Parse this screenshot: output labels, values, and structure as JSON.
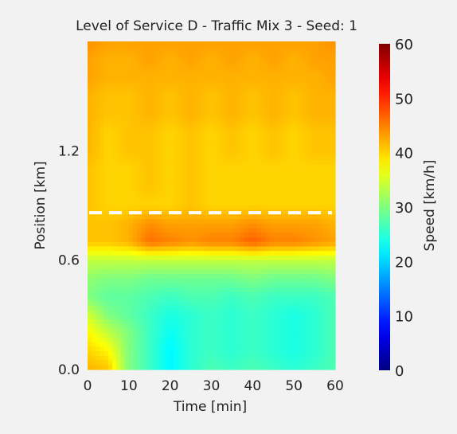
{
  "chart_data": {
    "type": "heatmap",
    "title": "Level of Service D - Traffic Mix 3 - Seed: 1",
    "xlabel": "Time [min]",
    "ylabel": "Position [km]",
    "xlim": [
      0,
      60
    ],
    "ylim": [
      0,
      1.8
    ],
    "xticks": [
      0,
      10,
      20,
      30,
      40,
      50,
      60
    ],
    "yticks": [
      0.0,
      0.6,
      1.2
    ],
    "ytick_labels": [
      "0.0",
      "0.6",
      "1.2"
    ],
    "reference_line": {
      "style": "dashed",
      "color": "#ffffff",
      "position_km": 0.86
    },
    "colorbar": {
      "label": "Speed [km/h]",
      "range": [
        0,
        60
      ],
      "ticks": [
        0,
        10,
        20,
        30,
        40,
        50,
        60
      ],
      "colormap": "jet"
    },
    "time_min": [
      0,
      5,
      10,
      15,
      20,
      25,
      30,
      35,
      40,
      45,
      50,
      55,
      60
    ],
    "position_km": [
      0.0,
      0.1,
      0.2,
      0.3,
      0.4,
      0.5,
      0.6,
      0.7,
      0.8,
      0.9,
      1.0,
      1.1,
      1.2,
      1.3,
      1.4,
      1.5,
      1.6,
      1.7,
      1.8
    ],
    "speed_kmh": [
      [
        42,
        41,
        30,
        26,
        22,
        25,
        27,
        26,
        27,
        26,
        25,
        26,
        27
      ],
      [
        40,
        38,
        30,
        26,
        22,
        25,
        26,
        25,
        26,
        25,
        24,
        25,
        27
      ],
      [
        38,
        34,
        30,
        26,
        23,
        25,
        26,
        25,
        26,
        25,
        24,
        25,
        27
      ],
      [
        35,
        30,
        28,
        26,
        24,
        25,
        26,
        25,
        26,
        25,
        24,
        25,
        27
      ],
      [
        30,
        28,
        28,
        27,
        26,
        27,
        27,
        26,
        27,
        26,
        26,
        26,
        27
      ],
      [
        31,
        30,
        30,
        29,
        29,
        29,
        29,
        29,
        30,
        29,
        29,
        29,
        30
      ],
      [
        34,
        34,
        34,
        34,
        34,
        34,
        34,
        34,
        34,
        34,
        34,
        34,
        34
      ],
      [
        41,
        41,
        42,
        46,
        45,
        44,
        45,
        45,
        47,
        45,
        45,
        44,
        43
      ],
      [
        41,
        41,
        42,
        44,
        43,
        43,
        43,
        43,
        44,
        43,
        43,
        43,
        42
      ],
      [
        41,
        40,
        40,
        40,
        40,
        41,
        40,
        40,
        40,
        40,
        40,
        40,
        40
      ],
      [
        41,
        40,
        40,
        41,
        40,
        41,
        40,
        40,
        40,
        40,
        40,
        40,
        40
      ],
      [
        41,
        40,
        40,
        41,
        40,
        41,
        40,
        40,
        40,
        40,
        40,
        40,
        40
      ],
      [
        42,
        40,
        41,
        41,
        40,
        41,
        40,
        41,
        40,
        41,
        40,
        41,
        41
      ],
      [
        42,
        40,
        41,
        41,
        40,
        41,
        40,
        41,
        40,
        41,
        40,
        41,
        41
      ],
      [
        42,
        41,
        41,
        42,
        41,
        42,
        41,
        42,
        41,
        42,
        41,
        42,
        42
      ],
      [
        42,
        41,
        41,
        42,
        41,
        42,
        41,
        42,
        41,
        42,
        41,
        42,
        42
      ],
      [
        43,
        42,
        42,
        42,
        42,
        42,
        42,
        42,
        42,
        42,
        42,
        42,
        43
      ],
      [
        43,
        42,
        42,
        43,
        42,
        43,
        42,
        43,
        42,
        43,
        42,
        43,
        43
      ],
      [
        44,
        43,
        43,
        43,
        43,
        43,
        43,
        43,
        43,
        43,
        43,
        43,
        44
      ]
    ]
  }
}
